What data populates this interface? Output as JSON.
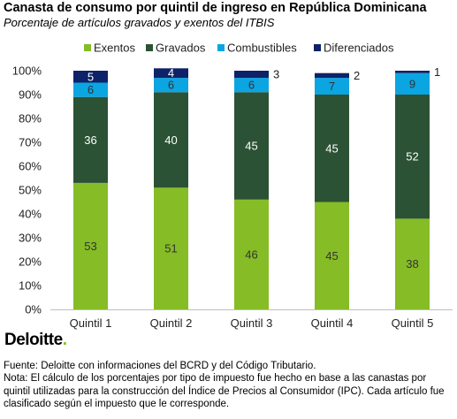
{
  "title": "Canasta de consumo por quintil de ingreso en República Dominicana",
  "subtitle": "Porcentaje de artículos gravados y exentos del ITBIS",
  "brand": {
    "name": "Deloitte",
    "dot": "."
  },
  "footnotes": {
    "source": "Fuente: Deloitte con informaciones del BCRD y del Código Tributario.",
    "note": "Nota: El cálculo de los porcentajes por tipo de impuesto fue hecho en base a las canastas por quintil utilizadas para la construcción del Índice de Precios al Consumidor (IPC). Cada artículo fue clasificado según el impuesto que le corresponde."
  },
  "chart_data": {
    "type": "bar",
    "stacked": true,
    "categories": [
      "Quintil 1",
      "Quintil 2",
      "Quintil 3",
      "Quintil 4",
      "Quintil 5"
    ],
    "series": [
      {
        "name": "Exentos",
        "color": "#86bc25",
        "values": [
          53,
          51,
          46,
          45,
          38
        ]
      },
      {
        "name": "Gravados",
        "color": "#2b5234",
        "values": [
          36,
          40,
          45,
          45,
          52
        ]
      },
      {
        "name": "Combustibles",
        "color": "#0ba5e2",
        "values": [
          6,
          6,
          6,
          7,
          9
        ]
      },
      {
        "name": "Diferenciados",
        "color": "#0d2268",
        "values": [
          5,
          4,
          3,
          2,
          1
        ]
      }
    ],
    "ylim": [
      0,
      100
    ],
    "yticks": [
      "0%",
      "10%",
      "20%",
      "30%",
      "40%",
      "50%",
      "60%",
      "70%",
      "80%",
      "90%",
      "100%"
    ],
    "legend_position": "top",
    "grid": false
  }
}
